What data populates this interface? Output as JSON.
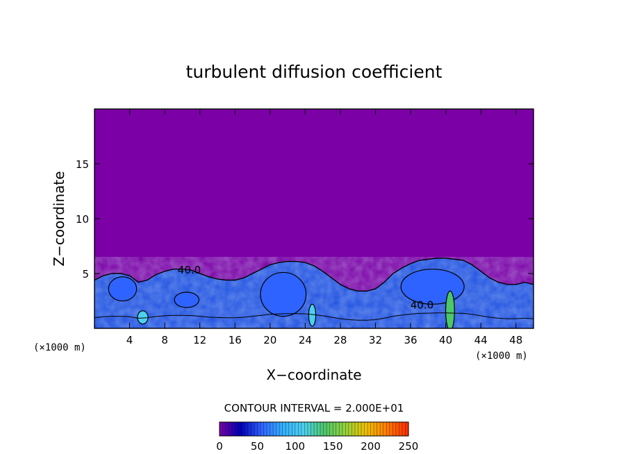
{
  "chart_data": {
    "type": "heatmap",
    "title": "turbulent diffusion coefficient",
    "xlabel": "X−coordinate",
    "ylabel": "Z−coordinate",
    "x_unit_label": "(×1000 m)",
    "y_unit_label": "(×1000 m)",
    "xlim": [
      0,
      50
    ],
    "ylim": [
      0,
      20
    ],
    "x_ticks": [
      4,
      8,
      12,
      16,
      20,
      24,
      28,
      32,
      36,
      40,
      44,
      48
    ],
    "y_ticks": [
      5,
      10,
      15
    ],
    "background_value": 0,
    "boundary_layer_top": [
      [
        0,
        4.4
      ],
      [
        1,
        4.8
      ],
      [
        2,
        5.0
      ],
      [
        3,
        5.0
      ],
      [
        4,
        4.8
      ],
      [
        5,
        4.2
      ],
      [
        6,
        4.4
      ],
      [
        7,
        4.9
      ],
      [
        8,
        5.2
      ],
      [
        9,
        5.4
      ],
      [
        10,
        5.4
      ],
      [
        11,
        5.3
      ],
      [
        12,
        5.0
      ],
      [
        13,
        4.7
      ],
      [
        14,
        4.5
      ],
      [
        15,
        4.4
      ],
      [
        16,
        4.4
      ],
      [
        17,
        4.6
      ],
      [
        18,
        5.0
      ],
      [
        19,
        5.4
      ],
      [
        20,
        5.8
      ],
      [
        21,
        6.0
      ],
      [
        22,
        6.1
      ],
      [
        23,
        6.1
      ],
      [
        24,
        6.0
      ],
      [
        25,
        5.7
      ],
      [
        26,
        5.2
      ],
      [
        27,
        4.6
      ],
      [
        28,
        4.0
      ],
      [
        29,
        3.6
      ],
      [
        30,
        3.4
      ],
      [
        31,
        3.4
      ],
      [
        32,
        3.6
      ],
      [
        33,
        4.2
      ],
      [
        34,
        5.0
      ],
      [
        35,
        5.5
      ],
      [
        36,
        5.9
      ],
      [
        37,
        6.2
      ],
      [
        38,
        6.3
      ],
      [
        39,
        6.4
      ],
      [
        40,
        6.4
      ],
      [
        41,
        6.3
      ],
      [
        42,
        6.2
      ],
      [
        43,
        5.8
      ],
      [
        44,
        5.2
      ],
      [
        45,
        4.6
      ],
      [
        46,
        4.2
      ],
      [
        47,
        4.0
      ],
      [
        48,
        4.0
      ],
      [
        49,
        4.2
      ],
      [
        50,
        4.0
      ]
    ],
    "core_regions": [
      {
        "x": 3.2,
        "z": 3.6,
        "rx": 1.6,
        "rz": 1.1,
        "value": 50
      },
      {
        "x": 10.5,
        "z": 2.6,
        "rx": 1.4,
        "rz": 0.7,
        "value": 45
      },
      {
        "x": 21.5,
        "z": 3.1,
        "rx": 2.6,
        "rz": 2.0,
        "value": 50
      },
      {
        "x": 38.5,
        "z": 3.8,
        "rx": 3.6,
        "rz": 1.6,
        "value": 50
      },
      {
        "x": 40.5,
        "z": 1.6,
        "rx": 0.5,
        "rz": 1.8,
        "value": 140
      },
      {
        "x": 24.8,
        "z": 1.2,
        "rx": 0.4,
        "rz": 1.0,
        "value": 120
      },
      {
        "x": 5.5,
        "z": 1.0,
        "rx": 0.6,
        "rz": 0.6,
        "value": 120
      }
    ],
    "contour_labels": [
      {
        "text": "40.0",
        "x": 10.8,
        "z": 5.0
      },
      {
        "text": "40.0",
        "x": 37.3,
        "z": 1.8
      }
    ],
    "contour_interval_label": "CONTOUR INTERVAL = 2.000E+01",
    "colorbar": {
      "min": 0,
      "max": 250,
      "ticks": [
        "0",
        "50",
        "100",
        "150",
        "200",
        "250"
      ],
      "colors": [
        "#7b00a6",
        "#0000b8",
        "#2f63ff",
        "#33b0ff",
        "#4dd0f0",
        "#4cc76a",
        "#94d23c",
        "#f0c000",
        "#ff7a00",
        "#ff2a00"
      ]
    }
  }
}
